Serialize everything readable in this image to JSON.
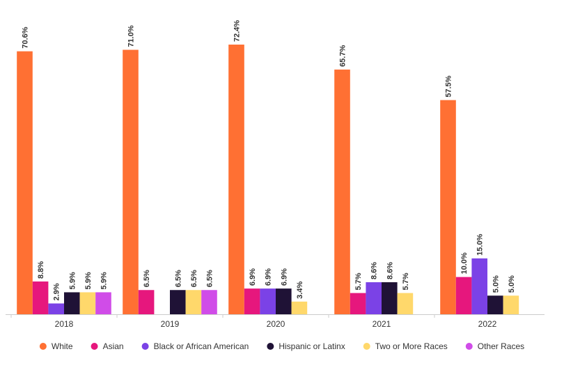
{
  "chart_data": {
    "type": "bar",
    "categories": [
      "2018",
      "2019",
      "2020",
      "2021",
      "2022"
    ],
    "series": [
      {
        "name": "White",
        "color": "#ff7033",
        "values": [
          70.6,
          71.0,
          72.4,
          65.7,
          57.5
        ],
        "value_labels": [
          "70.6%",
          "71.0%",
          "72.4%",
          "65.7%",
          "57.5%"
        ]
      },
      {
        "name": "Asian",
        "color": "#e6177d",
        "values": [
          8.8,
          6.5,
          6.9,
          5.7,
          10.0
        ],
        "value_labels": [
          "8.8%",
          "6.5%",
          "6.9%",
          "5.7%",
          "10.0%"
        ]
      },
      {
        "name": "Black or African American",
        "color": "#7b42e6",
        "values": [
          2.9,
          null,
          6.9,
          8.6,
          15.0
        ],
        "value_labels": [
          "2.9%",
          null,
          "6.9%",
          "8.6%",
          "15.0%"
        ]
      },
      {
        "name": "Hispanic or Latinx",
        "color": "#1f1236",
        "values": [
          5.9,
          6.5,
          6.9,
          8.6,
          5.0
        ],
        "value_labels": [
          "5.9%",
          "6.5%",
          "6.9%",
          "8.6%",
          "5.0%"
        ]
      },
      {
        "name": "Two or More Races",
        "color": "#ffd86b",
        "values": [
          5.9,
          6.5,
          3.4,
          5.7,
          5.0
        ],
        "value_labels": [
          "5.9%",
          "6.5%",
          "3.4%",
          "5.7%",
          "5.0%"
        ]
      },
      {
        "name": "Other Races",
        "color": "#d04ce8",
        "values": [
          5.9,
          6.5,
          null,
          null,
          null
        ],
        "value_labels": [
          "5.9%",
          "6.5%",
          null,
          null,
          null
        ]
      }
    ],
    "legend": "bottom"
  }
}
